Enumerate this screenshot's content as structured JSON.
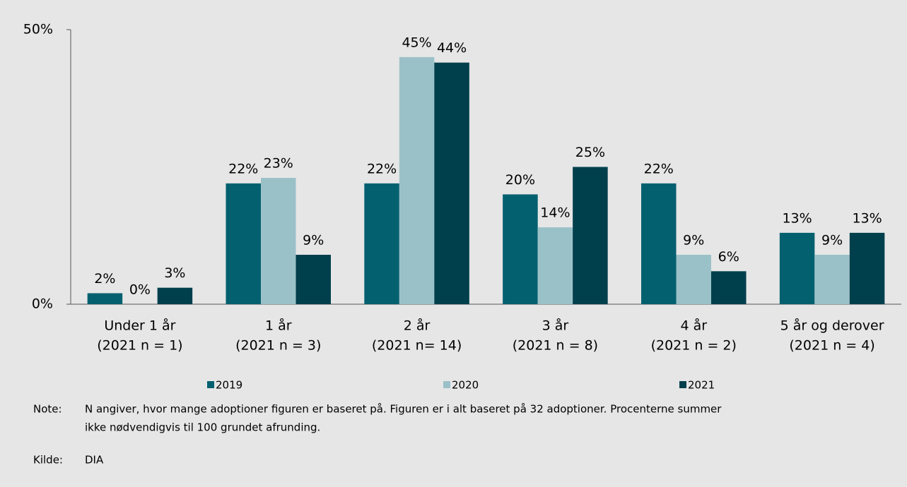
{
  "chart_data": {
    "type": "bar",
    "categories": [
      [
        "Under 1 år",
        "(2021 n = 1)"
      ],
      [
        "1 år",
        "(2021 n = 3)"
      ],
      [
        "2 år",
        "(2021 n= 14)"
      ],
      [
        "3 år",
        "(2021 n = 8)"
      ],
      [
        "4 år",
        "(2021 n = 2)"
      ],
      [
        "5 år og derover",
        "(2021 n = 4)"
      ]
    ],
    "series": [
      {
        "name": "2019",
        "color": "#03606f",
        "values": [
          2,
          22,
          22,
          20,
          22,
          13
        ],
        "value_labels": [
          "2%",
          "22%",
          "22%",
          "20%",
          "22%",
          "13%"
        ]
      },
      {
        "name": "2020",
        "color": "#9bc1c8",
        "values": [
          0,
          23,
          45,
          14,
          9,
          9
        ],
        "value_labels": [
          "0%",
          "23%",
          "45%",
          "14%",
          "9%",
          "9%"
        ]
      },
      {
        "name": "2021",
        "color": "#003f4c",
        "values": [
          3,
          9,
          44,
          25,
          6,
          13
        ],
        "value_labels": [
          "3%",
          "9%",
          "44%",
          "25%",
          "6%",
          "13%"
        ]
      }
    ],
    "ylim": [
      0,
      50
    ],
    "yticks": [
      {
        "value": 0,
        "label": "0%"
      },
      {
        "value": 50,
        "label": "50%"
      }
    ],
    "legend": "bottom",
    "note_label": "Note:",
    "note": [
      "N angiver, hvor mange adoptioner figuren er baseret på. Figuren er i alt baseret på 32 adoptioner. Procenterne summer",
      "ikke nødvendigvis til 100 grundet afrunding."
    ],
    "source_label": "Kilde:",
    "source": "DIA"
  }
}
